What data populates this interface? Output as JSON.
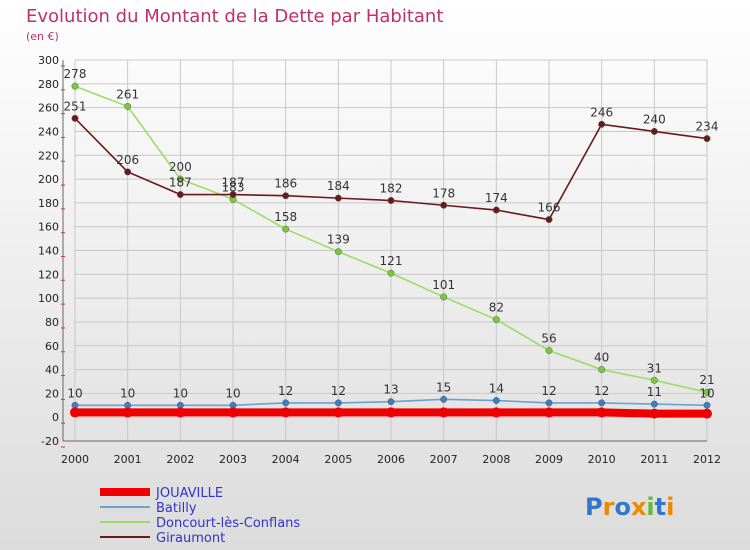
{
  "chart_data": {
    "type": "line",
    "title": "Evolution du Montant de la Dette par Habitant",
    "subtitle": "(en €)",
    "x": [
      "2000",
      "2001",
      "2002",
      "2003",
      "2004",
      "2005",
      "2006",
      "2007",
      "2008",
      "2009",
      "2010",
      "2011",
      "2012"
    ],
    "ylim": [
      -20,
      300
    ],
    "yticks": [
      -20,
      0,
      20,
      40,
      60,
      80,
      100,
      120,
      140,
      160,
      180,
      200,
      220,
      240,
      260,
      280,
      300
    ],
    "grid": true,
    "series": [
      {
        "name": "JOUAVILLE",
        "color": "#ee0000",
        "marker": "#ee0000",
        "values": [
          4,
          4,
          4,
          4,
          4,
          4,
          4,
          4,
          4,
          4,
          4,
          3,
          3
        ],
        "labels": [
          false,
          false,
          false,
          false,
          false,
          false,
          false,
          false,
          false,
          false,
          false,
          false,
          false
        ]
      },
      {
        "name": "Batilly",
        "color": "#6ea0d0",
        "marker": "#3a7fc4",
        "values": [
          10,
          10,
          10,
          10,
          12,
          12,
          13,
          15,
          14,
          12,
          12,
          11,
          10
        ],
        "labels": [
          true,
          true,
          true,
          true,
          true,
          true,
          true,
          true,
          true,
          true,
          true,
          true,
          true
        ]
      },
      {
        "name": "Doncourt-lès-Conflans",
        "color": "#99dd66",
        "marker": "#77cc33",
        "values": [
          278,
          261,
          200,
          183,
          158,
          139,
          121,
          101,
          82,
          56,
          40,
          31,
          21
        ],
        "labels": [
          true,
          true,
          true,
          true,
          true,
          true,
          true,
          true,
          true,
          true,
          true,
          true,
          true
        ]
      },
      {
        "name": "Giraumont",
        "color": "#6b1a1a",
        "marker": "#6b1a1a",
        "values": [
          251,
          206,
          187,
          187,
          186,
          184,
          182,
          178,
          174,
          166,
          246,
          240,
          234
        ],
        "labels": [
          true,
          true,
          true,
          true,
          true,
          true,
          true,
          true,
          true,
          true,
          true,
          true,
          true
        ]
      }
    ]
  },
  "branding": {
    "logo_letters": [
      "P",
      "r",
      "o",
      "x",
      "i",
      "t",
      "i"
    ],
    "logo_colors": [
      "#3377cc",
      "#ee8800",
      "#3377cc",
      "#ee8800",
      "#66bb33",
      "#3377cc",
      "#ee8800"
    ]
  }
}
